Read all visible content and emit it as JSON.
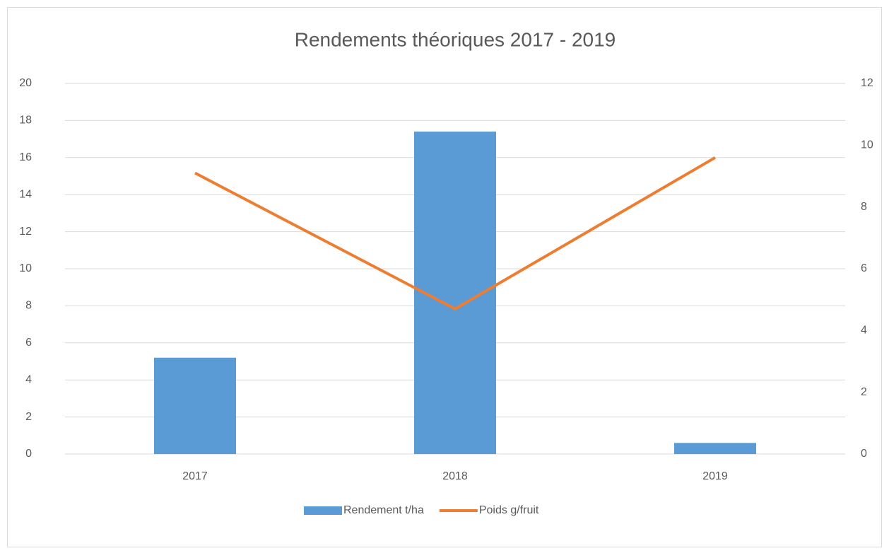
{
  "chart_data": {
    "type": "bar",
    "title": "Rendements théoriques 2017 - 2019",
    "categories": [
      "2017",
      "2018",
      "2019"
    ],
    "series": [
      {
        "name": "Rendement t/ha",
        "color": "#5b9bd5",
        "type": "bar",
        "values": [
          5.2,
          17.4,
          0.6
        ]
      },
      {
        "name": "Poids g/fruit",
        "color": "#ed7d31",
        "type": "line",
        "axis": "y2",
        "values": [
          9.1,
          4.7,
          9.6
        ]
      }
    ],
    "ylim": [
      0,
      20
    ],
    "yticks": [
      0,
      2,
      4,
      6,
      8,
      10,
      12,
      14,
      16,
      18,
      20
    ],
    "y2lim": [
      0,
      12
    ],
    "y2ticks": [
      0,
      2,
      4,
      6,
      8,
      10,
      12
    ],
    "grid": true,
    "legend": "bottom"
  }
}
